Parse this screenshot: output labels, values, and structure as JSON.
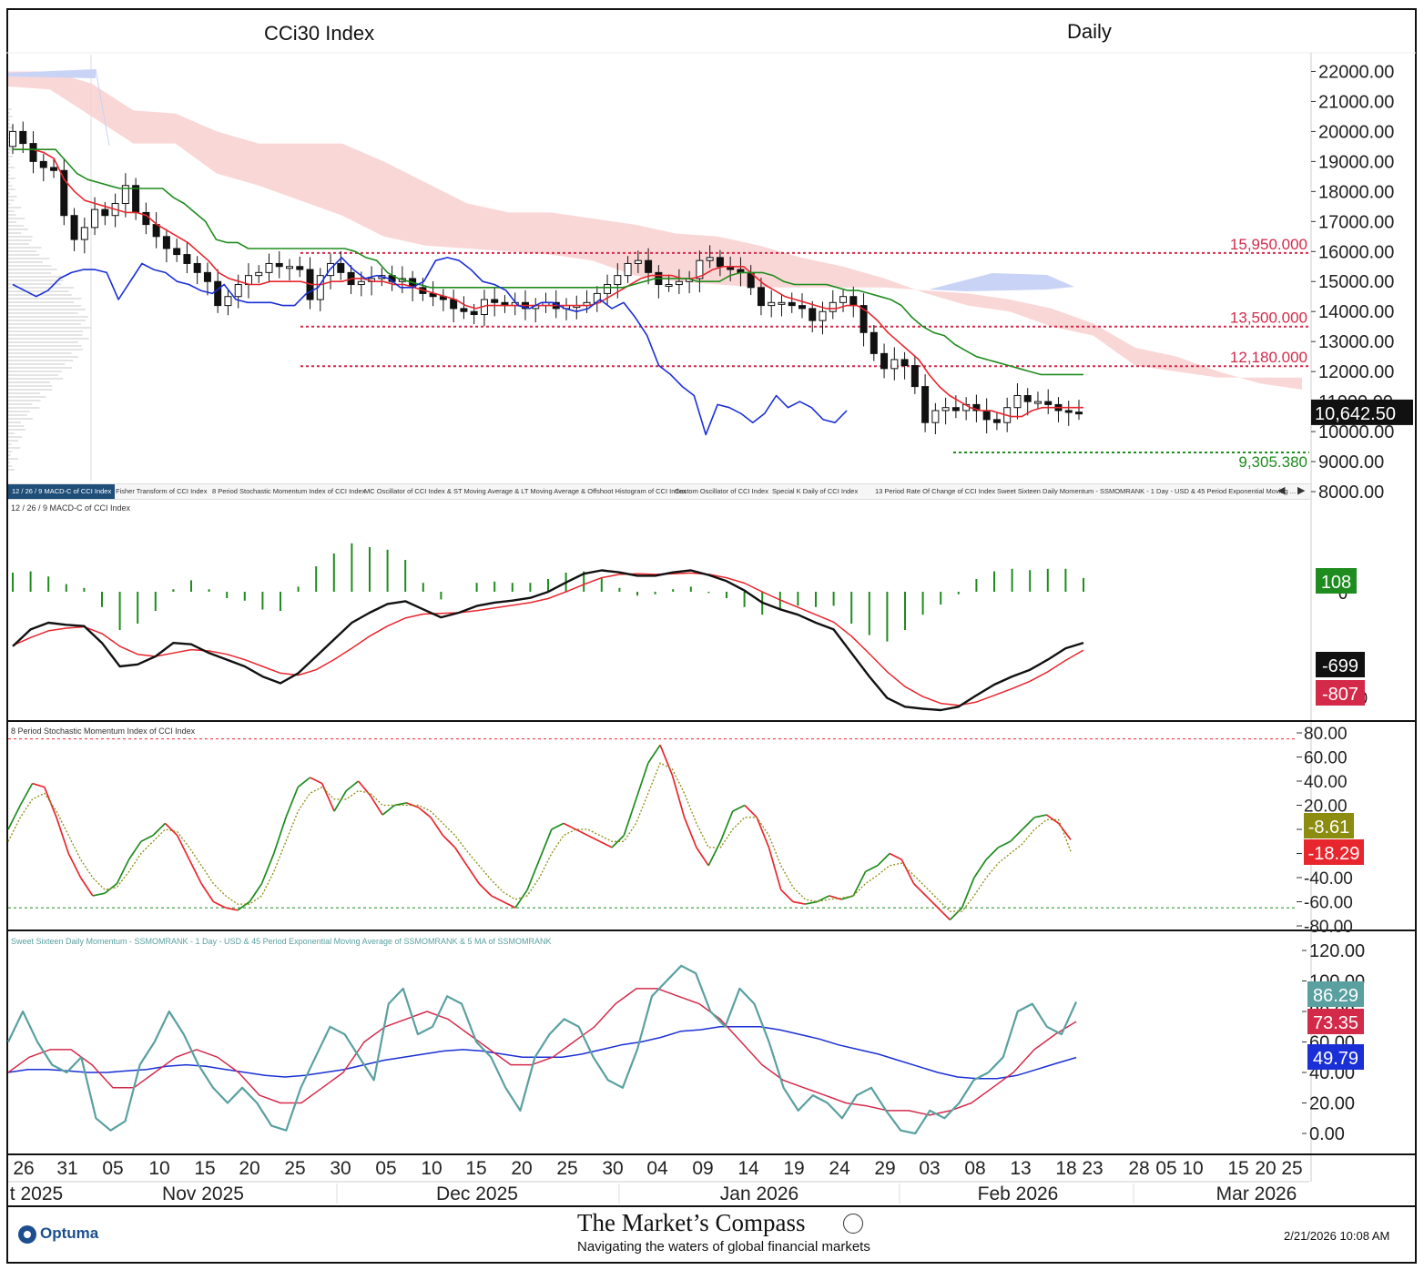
{
  "header": {
    "title": "CCi30 Index",
    "period": "Daily"
  },
  "tabs": [
    "12 / 26 / 9 MACD-C of CCI Index",
    "Fisher Transform of CCI Index",
    "8 Period Stochastic Momentum Index of CCI Index",
    "MC Oscillator of CCI Index & ST Moving Average & LT Moving Average & Offshoot Histogram of CCI Index",
    "Custom Oscillator of CCI Index",
    "Special K Daily of CCI Index",
    "13 Period Rate Of Change of CCI Index",
    "Sweet Sixteen Daily Momentum - SSMOMRANK - 1 Day - USD & 45 Period Exponential Moving ..."
  ],
  "tab_nav": {
    "prev": "◀",
    "next": "▶"
  },
  "colors": {
    "red": "#e8262d",
    "green": "#1e8c1e",
    "blue": "#1a2fd6",
    "teal": "#5aa0a0",
    "olive": "#8c8c10",
    "crimson": "#d42a4a",
    "cloud_red": "#f9d0d0",
    "cloud_blue": "#c9d3f5"
  },
  "chart_data": [
    {
      "type": "candlestick",
      "title": "CCi30 Index",
      "ylim": [
        8000,
        22500
      ],
      "yticks": [
        "22000.00",
        "21000.00",
        "20000.00",
        "19000.00",
        "18000.00",
        "17000.00",
        "16000.00",
        "15000.00",
        "14000.00",
        "13000.00",
        "12000.00",
        "11000.00",
        "10000.00",
        "9000.00",
        "8000.00"
      ],
      "last_price": "10,642.50",
      "levels": [
        {
          "label": "15,950.000",
          "value": 15950,
          "color": "#d42a4a"
        },
        {
          "label": "13,500.000",
          "value": 13500,
          "color": "#d42a4a"
        },
        {
          "label": "12,180.000",
          "value": 12180,
          "color": "#d42a4a"
        },
        {
          "label": "9,305.380",
          "value": 9305,
          "color": "#1e8c1e"
        }
      ],
      "closes": [
        20000,
        19600,
        19000,
        18800,
        18700,
        17200,
        16400,
        16800,
        17400,
        17200,
        17600,
        18200,
        17300,
        16900,
        16500,
        16100,
        15900,
        15600,
        15300,
        15000,
        14200,
        14500,
        14900,
        15200,
        15300,
        15600,
        15500,
        15500,
        15400,
        14400,
        15200,
        15600,
        15300,
        14900,
        15000,
        15100,
        15200,
        15000,
        15100,
        14800,
        14600,
        14500,
        14400,
        14100,
        14000,
        13900,
        14400,
        14300,
        14200,
        14300,
        14100,
        14200,
        14300,
        14100,
        14200,
        14200,
        14300,
        14600,
        14900,
        15200,
        15600,
        15700,
        15300,
        14900,
        14900,
        15000,
        15100,
        15700,
        15800,
        15500,
        15400,
        15300,
        14800,
        14200,
        14300,
        14300,
        14200,
        14100,
        13700,
        14000,
        14300,
        14500,
        14200,
        13300,
        12600,
        12100,
        12400,
        12200,
        11500,
        10300,
        10700,
        10800,
        10700,
        10900,
        10700,
        10400,
        10300,
        10800,
        11200,
        11000,
        11000,
        10900,
        10700,
        10650,
        10642
      ],
      "ma_short": [
        19400,
        19400,
        19400,
        19300,
        19100,
        18400,
        18000,
        17700,
        17600,
        17500,
        17400,
        17300,
        17300,
        17200,
        16900,
        16700,
        16500,
        16300,
        16000,
        15700,
        15300,
        15100,
        15000,
        14900,
        14900,
        15000,
        15000,
        15000,
        15000,
        14900,
        14900,
        15000,
        15000,
        15100,
        15100,
        15000,
        15000,
        14900,
        14900,
        14800,
        14700,
        14600,
        14500,
        14400,
        14200,
        14100,
        14200,
        14200,
        14200,
        14200,
        14200,
        14200,
        14200,
        14200,
        14200,
        14200,
        14200,
        14300,
        14500,
        14700,
        14900,
        15100,
        15200,
        15200,
        15200,
        15100,
        15100,
        15200,
        15400,
        15500,
        15500,
        15500,
        15200,
        14900,
        14700,
        14500,
        14400,
        14300,
        14200,
        14100,
        14100,
        14200,
        14200,
        14000,
        13700,
        13300,
        13000,
        12700,
        12400,
        11900,
        11500,
        11200,
        11000,
        10800,
        10700,
        10700,
        10600,
        10500,
        10500,
        10700,
        10800,
        10800,
        10800,
        10800,
        10800
      ],
      "ma_long": [
        19400,
        19400,
        19400,
        19400,
        19400,
        19000,
        18600,
        18400,
        18300,
        18200,
        18100,
        18100,
        18100,
        18100,
        18100,
        17800,
        17600,
        17300,
        17000,
        16400,
        16300,
        16300,
        16100,
        16100,
        16100,
        16100,
        16100,
        16100,
        16100,
        16100,
        16100,
        16100,
        16000,
        15800,
        15700,
        15300,
        15100,
        15000,
        14900,
        14800,
        14800,
        14800,
        14800,
        14800,
        14800,
        14800,
        14800,
        14800,
        14800,
        14800,
        14800,
        14800,
        14800,
        14800,
        14800,
        14800,
        14800,
        14800,
        14900,
        15000,
        15100,
        15100,
        15100,
        15100,
        15000,
        15000,
        15000,
        15200,
        15300,
        15300,
        15300,
        15200,
        15000,
        14900,
        14900,
        14900,
        14900,
        14800,
        14700,
        14700,
        14600,
        14500,
        14400,
        14200,
        13800,
        13500,
        13300,
        13200,
        12900,
        12700,
        12500,
        12400,
        12300,
        12200,
        12100,
        12000,
        11900,
        11900,
        11900,
        11900,
        11900
      ],
      "lagging": [
        14900,
        14700,
        14500,
        14700,
        15100,
        15300,
        15400,
        15400,
        15300,
        14400,
        15000,
        15600,
        15400,
        15300,
        15000,
        14900,
        14700,
        14600,
        14900,
        14400,
        14300,
        14300,
        14300,
        14200,
        14200,
        14600,
        14800,
        15400,
        15800,
        15400,
        15100,
        15200,
        15100,
        14800,
        14800,
        15000,
        15700,
        15800,
        15700,
        15400,
        15000,
        14900,
        14700,
        14200,
        14100,
        14300,
        14300,
        14100,
        14000,
        14100,
        14400,
        14100,
        14300,
        13800,
        13200,
        12200,
        11900,
        11500,
        11200,
        9900,
        10900,
        10800,
        10600,
        10300,
        10600,
        11200,
        10800,
        11000,
        10800,
        10400,
        10300,
        10700
      ],
      "cloud_red_top": [
        22000,
        22000,
        21600,
        20700,
        20600,
        20000,
        19600,
        19600,
        19600,
        19000,
        18300,
        17600,
        17300,
        17300,
        17100,
        16900,
        16600,
        16500,
        16200,
        15800,
        15500,
        15100,
        14600,
        14200,
        14000,
        13500,
        13200,
        12200,
        12000,
        11800,
        11800,
        11800
      ],
      "cloud_red_bottom": [
        21500,
        21400,
        20500,
        19600,
        19600,
        18600,
        18200,
        17700,
        17200,
        16500,
        16200,
        16100,
        16000,
        15900,
        15700,
        15200,
        15000,
        14900,
        14800,
        14800,
        14800,
        14800,
        14700,
        14600,
        14400,
        14100,
        13600,
        12800,
        12500,
        12000,
        11600,
        11400
      ],
      "volume_profile": "horizontal histogram at left edge"
    },
    {
      "type": "line+histogram",
      "title": "12 / 26 / 9 MACD-C of CCI Index",
      "readouts": {
        "histogram": "108",
        "macd": "-699",
        "signal": "-807"
      },
      "tick_label": "0",
      "tick_label_2": "0",
      "macd": [
        -750,
        -500,
        -400,
        -430,
        -450,
        -700,
        -1050,
        -1020,
        -900,
        -700,
        -720,
        -850,
        -950,
        -1050,
        -1200,
        -1300,
        -1150,
        -900,
        -650,
        -400,
        -250,
        -120,
        -80,
        -200,
        -320,
        -250,
        -150,
        -100,
        -70,
        -30,
        60,
        200,
        330,
        380,
        350,
        300,
        300,
        350,
        380,
        310,
        220,
        80,
        -100,
        -200,
        -280,
        -400,
        -500,
        -850,
        -1200,
        -1520,
        -1650,
        -1680,
        -1700,
        -1650,
        -1480,
        -1320,
        -1200,
        -1100,
        -950,
        -780,
        -699
      ],
      "signal": [
        -740,
        -620,
        -520,
        -480,
        -460,
        -560,
        -750,
        -870,
        -900,
        -850,
        -800,
        -820,
        -870,
        -950,
        -1050,
        -1150,
        -1180,
        -1100,
        -950,
        -780,
        -600,
        -450,
        -330,
        -270,
        -260,
        -250,
        -220,
        -180,
        -140,
        -100,
        -40,
        60,
        170,
        270,
        320,
        330,
        320,
        330,
        340,
        320,
        270,
        190,
        60,
        -60,
        -170,
        -280,
        -390,
        -600,
        -860,
        -1130,
        -1350,
        -1500,
        -1600,
        -1630,
        -1580,
        -1480,
        -1380,
        -1270,
        -1130,
        -960,
        -807
      ],
      "histogram": [
        150,
        160,
        120,
        60,
        30,
        -120,
        -300,
        -250,
        -150,
        20,
        90,
        20,
        -50,
        -70,
        -140,
        -150,
        40,
        200,
        300,
        380,
        350,
        330,
        250,
        70,
        -60,
        0,
        70,
        80,
        70,
        70,
        100,
        150,
        160,
        110,
        30,
        -30,
        -20,
        20,
        40,
        -10,
        -50,
        -120,
        -180,
        -140,
        -110,
        -120,
        -110,
        -250,
        -340,
        -390,
        -300,
        -180,
        -100,
        -20,
        100,
        160,
        180,
        170,
        180,
        180,
        108
      ]
    },
    {
      "type": "line",
      "title": "8 Period Stochastic Momentum Index of CCI Index",
      "ylim": [
        -80,
        80
      ],
      "yticks": [
        "80.00",
        "60.00",
        "40.00",
        "20.00",
        "0.00",
        "-20.00",
        "-40.00",
        "-60.00",
        "-80.00"
      ],
      "upper": 75,
      "lower": -65,
      "readouts": {
        "smi": "-8.61",
        "signal": "-18.29"
      },
      "smi": [
        0,
        20,
        38,
        35,
        10,
        -20,
        -40,
        -55,
        -53,
        -45,
        -25,
        -10,
        -5,
        5,
        -5,
        -25,
        -45,
        -60,
        -65,
        -67,
        -60,
        -45,
        -20,
        10,
        35,
        43,
        38,
        15,
        32,
        40,
        28,
        12,
        20,
        22,
        18,
        10,
        -5,
        -15,
        -30,
        -45,
        -55,
        -60,
        -65,
        -50,
        -25,
        0,
        5,
        0,
        -5,
        -10,
        -15,
        -5,
        25,
        55,
        70,
        45,
        10,
        -15,
        -30,
        -10,
        15,
        20,
        10,
        -15,
        -50,
        -60,
        -62,
        -60,
        -55,
        -58,
        -55,
        -35,
        -30,
        -20,
        -25,
        -45,
        -55,
        -65,
        -75,
        -65,
        -40,
        -25,
        -15,
        -10,
        0,
        10,
        12,
        5,
        -8.61
      ],
      "signal": [
        -10,
        10,
        25,
        30,
        15,
        -5,
        -25,
        -40,
        -50,
        -48,
        -35,
        -20,
        -10,
        0,
        -2,
        -15,
        -30,
        -45,
        -55,
        -62,
        -62,
        -55,
        -35,
        -10,
        15,
        30,
        35,
        25,
        25,
        32,
        30,
        20,
        20,
        20,
        20,
        15,
        5,
        -5,
        -18,
        -30,
        -42,
        -52,
        -58,
        -55,
        -40,
        -20,
        -5,
        0,
        0,
        -5,
        -10,
        -10,
        5,
        30,
        55,
        50,
        30,
        5,
        -15,
        -15,
        0,
        10,
        10,
        -5,
        -30,
        -48,
        -58,
        -60,
        -58,
        -57,
        -55,
        -45,
        -38,
        -30,
        -28,
        -38,
        -48,
        -58,
        -68,
        -68,
        -55,
        -40,
        -28,
        -20,
        -12,
        0,
        8,
        8,
        -18.29
      ]
    },
    {
      "type": "line",
      "title": "Sweet Sixteen Daily Momentum - SSMOMRANK - 1 Day - USD & 45 Period Exponential Moving Average of SSMOMRANK & 5 MA of SSMOMRANK",
      "ylim": [
        -10,
        120
      ],
      "yticks": [
        "120.00",
        "100.00",
        "80.00",
        "60.00",
        "40.00",
        "20.00",
        "0.00"
      ],
      "readouts": {
        "ssmomrank": "86.29",
        "ma5": "73.35",
        "ema45": "49.79"
      },
      "ssmomrank": [
        60,
        80,
        60,
        45,
        40,
        50,
        10,
        2,
        8,
        45,
        60,
        80,
        65,
        45,
        30,
        20,
        30,
        20,
        5,
        2,
        30,
        50,
        70,
        65,
        50,
        35,
        85,
        95,
        65,
        70,
        90,
        85,
        60,
        50,
        30,
        15,
        50,
        65,
        75,
        70,
        50,
        35,
        30,
        55,
        90,
        100,
        110,
        105,
        80,
        70,
        95,
        85,
        60,
        30,
        15,
        25,
        20,
        10,
        25,
        30,
        15,
        2,
        0,
        15,
        10,
        20,
        35,
        40,
        50,
        80,
        85,
        70,
        65,
        86.29
      ],
      "ema45": [
        40,
        42,
        42,
        41,
        40,
        40,
        41,
        42,
        44,
        45,
        44,
        42,
        40,
        38,
        37,
        38,
        40,
        42,
        45,
        48,
        50,
        52,
        54,
        55,
        54,
        52,
        50,
        50,
        50,
        52,
        55,
        58,
        60,
        63,
        67,
        68,
        70,
        70,
        70,
        68,
        65,
        62,
        58,
        55,
        52,
        48,
        44,
        40,
        37,
        36,
        36,
        38,
        42,
        46,
        49.79
      ],
      "ma5": [
        40,
        50,
        55,
        55,
        45,
        30,
        30,
        40,
        50,
        55,
        50,
        40,
        25,
        20,
        20,
        30,
        40,
        60,
        70,
        75,
        80,
        75,
        65,
        55,
        45,
        45,
        50,
        60,
        70,
        85,
        95,
        95,
        90,
        85,
        75,
        60,
        45,
        35,
        30,
        25,
        20,
        18,
        15,
        15,
        12,
        15,
        20,
        30,
        40,
        55,
        65,
        73.35
      ]
    }
  ],
  "time_axis": {
    "days": [
      "26",
      "31",
      "05",
      "10",
      "15",
      "20",
      "25",
      "30",
      "05",
      "10",
      "15",
      "20",
      "25",
      "30",
      "04",
      "09",
      "14",
      "19",
      "24",
      "29",
      "03",
      "08",
      "13",
      "18",
      "23",
      "28",
      "05",
      "10",
      "15",
      "20",
      "25"
    ],
    "months": [
      "t 2025",
      "Nov 2025",
      "Dec 2025",
      "Jan 2026",
      "Feb 2026",
      "Mar 2026"
    ]
  },
  "footer": {
    "logo": "Optuma",
    "brand": "The Market’s Compass",
    "tagline": "Navigating the waters of global financial markets",
    "timestamp": "2/21/2026 10:08 AM"
  }
}
